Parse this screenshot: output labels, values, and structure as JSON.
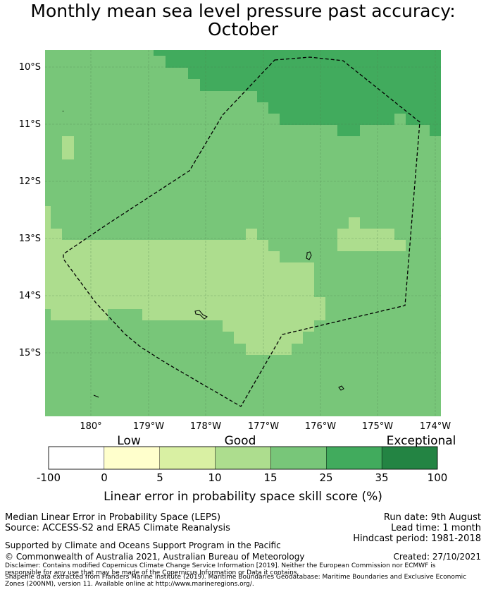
{
  "title": {
    "line1": "Monthly mean sea level pressure past accuracy:",
    "line2": "October"
  },
  "map": {
    "lat_labels": [
      "10°S",
      "11°S",
      "12°S",
      "13°S",
      "14°S",
      "15°S"
    ],
    "lon_labels": [
      "180°",
      "179°W",
      "178°W",
      "177°W",
      "176°W",
      "175°W",
      "174°W"
    ]
  },
  "colorbar": {
    "categories": [
      "Low",
      "Good",
      "Exceptional"
    ],
    "ticks": [
      "-100",
      "0",
      "5",
      "10",
      "15",
      "25",
      "35",
      "100"
    ],
    "colors": [
      "#ffffff",
      "#ffffcc",
      "#d9f0a3",
      "#addd8e",
      "#78c679",
      "#41ab5d",
      "#238443"
    ],
    "label": "Linear error in probability space skill score (%)"
  },
  "footer": {
    "left1": "Median Linear Error in Probability Space (LEPS)",
    "left2": "Source: ACCESS-S2 and ERA5 Climate Reanalysis",
    "support": "Supported by Climate and Oceans Support Program in the Pacific",
    "copyright": "© Commonwealth of Australia 2021, Australian Bureau of Meteorology",
    "disclaimer1": "Disclaimer: Contains modified Copernicus Climate Change Service Information [2019]. Neither the European Commission nor ECMWF is",
    "disclaimer2": "responsible for any use that may be made of the Copernicus Information or Data it contains.",
    "shapefile1": "Shapefile data extracted from Flanders Marine Institute (2019). Maritime Boundaries Geodatabase: Maritime Boundaries and Exclusive Economic",
    "shapefile2": "Zones (200NM), version 11. Available online at http://www.marineregions.org/.",
    "run_date": "Run date: 9th August",
    "lead_time": "Lead time: 1 month",
    "hindcast": "Hindcast period: 1981-2018",
    "created": "Created: 27/10/2021"
  }
}
